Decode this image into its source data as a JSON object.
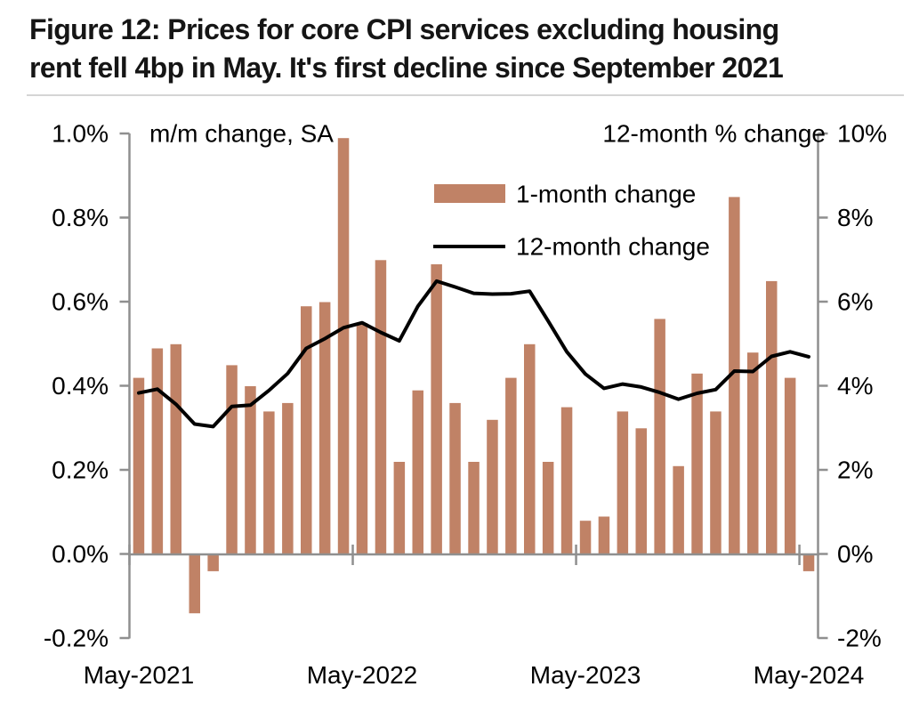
{
  "figure": {
    "title_line1": "Figure 12: Prices for core CPI services excluding housing",
    "title_line2": "rent fell 4bp in May. It's first decline since September 2021"
  },
  "chart_data": {
    "type": "bar",
    "title": "Figure 12: Prices for core CPI services excluding housing rent fell 4bp in May. It's first decline since September 2021",
    "categories": [
      "May-2021",
      "Jun-2021",
      "Jul-2021",
      "Aug-2021",
      "Sep-2021",
      "Oct-2021",
      "Nov-2021",
      "Dec-2021",
      "Jan-2022",
      "Feb-2022",
      "Mar-2022",
      "Apr-2022",
      "May-2022",
      "Jun-2022",
      "Jul-2022",
      "Aug-2022",
      "Sep-2022",
      "Oct-2022",
      "Nov-2022",
      "Dec-2022",
      "Jan-2023",
      "Feb-2023",
      "Mar-2023",
      "Apr-2023",
      "May-2023",
      "Jun-2023",
      "Jul-2023",
      "Aug-2023",
      "Sep-2023",
      "Oct-2023",
      "Nov-2023",
      "Dec-2023",
      "Jan-2024",
      "Feb-2024",
      "Mar-2024",
      "Apr-2024",
      "May-2024"
    ],
    "series": [
      {
        "name": "1-month change",
        "type": "bar",
        "axis": "left",
        "color": "#C08266",
        "values": [
          0.42,
          0.49,
          0.5,
          -0.14,
          -0.04,
          0.45,
          0.4,
          0.34,
          0.36,
          0.59,
          0.6,
          0.99,
          0.55,
          0.7,
          0.22,
          0.39,
          0.69,
          0.36,
          0.22,
          0.32,
          0.42,
          0.5,
          0.22,
          0.35,
          0.08,
          0.09,
          0.34,
          0.3,
          0.56,
          0.21,
          0.43,
          0.34,
          0.85,
          0.48,
          0.65,
          0.42,
          -0.04
        ]
      },
      {
        "name": "12-month change",
        "type": "line",
        "axis": "right",
        "color": "#000000",
        "values": [
          3.84,
          3.93,
          3.57,
          3.1,
          3.04,
          3.52,
          3.55,
          3.9,
          4.3,
          4.9,
          5.13,
          5.39,
          5.51,
          5.28,
          5.08,
          5.9,
          6.5,
          6.36,
          6.21,
          6.19,
          6.2,
          6.26,
          5.55,
          4.82,
          4.29,
          3.95,
          4.05,
          3.98,
          3.85,
          3.69,
          3.83,
          3.92,
          4.36,
          4.35,
          4.71,
          4.82,
          4.7
        ]
      }
    ],
    "left_axis": {
      "label": "m/m change, SA",
      "min": -0.2,
      "max": 1.0,
      "ticks": [
        "1.0%",
        "0.8%",
        "0.6%",
        "0.4%",
        "0.2%",
        "0.0%",
        "-0.2%"
      ]
    },
    "right_axis": {
      "label": "12-month % change",
      "min": -2,
      "max": 10,
      "ticks": [
        "10%",
        "8%",
        "6%",
        "4%",
        "2%",
        "0%",
        "-2%"
      ]
    },
    "x_axis": {
      "labels": [
        "May-2021",
        "May-2022",
        "May-2023",
        "May-2024"
      ],
      "positions": [
        0,
        12,
        24,
        36
      ]
    },
    "legend": {
      "position": "inside-top-center",
      "entries": [
        "1-month change",
        "12-month change"
      ]
    },
    "grid": false
  },
  "colors": {
    "background": "#FFFFFF",
    "bar": "#C08266",
    "line": "#000000",
    "axis": "#8F8F8F",
    "title_text": "#151515",
    "divider": "#D5D5D5"
  }
}
